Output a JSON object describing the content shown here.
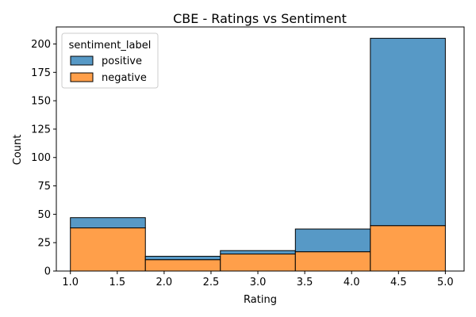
{
  "chart_data": {
    "type": "bar",
    "title": "CBE - Ratings vs Sentiment",
    "xlabel": "Rating",
    "ylabel": "Count",
    "xlim": [
      0.85,
      5.2
    ],
    "ylim": [
      0,
      215
    ],
    "x_ticks": [
      1.0,
      1.5,
      2.0,
      2.5,
      3.0,
      3.5,
      4.0,
      4.5,
      5.0
    ],
    "y_ticks": [
      0,
      25,
      50,
      75,
      100,
      125,
      150,
      175,
      200
    ],
    "grid": false,
    "stacked": true,
    "bins": [
      [
        1.0,
        1.8
      ],
      [
        1.8,
        2.6
      ],
      [
        2.6,
        3.4
      ],
      [
        3.4,
        4.2
      ],
      [
        4.2,
        5.0
      ]
    ],
    "series": [
      {
        "name": "negative",
        "color": "#ff9f4a",
        "values": [
          38,
          10,
          15,
          17,
          40
        ]
      },
      {
        "name": "positive",
        "color": "#5799c6",
        "values": [
          9,
          3,
          3,
          20,
          165
        ]
      }
    ],
    "legend": {
      "title": "sentiment_label",
      "placement": "top-left",
      "entries": [
        {
          "name": "positive",
          "color": "#5799c6"
        },
        {
          "name": "negative",
          "color": "#ff9f4a"
        }
      ]
    }
  }
}
